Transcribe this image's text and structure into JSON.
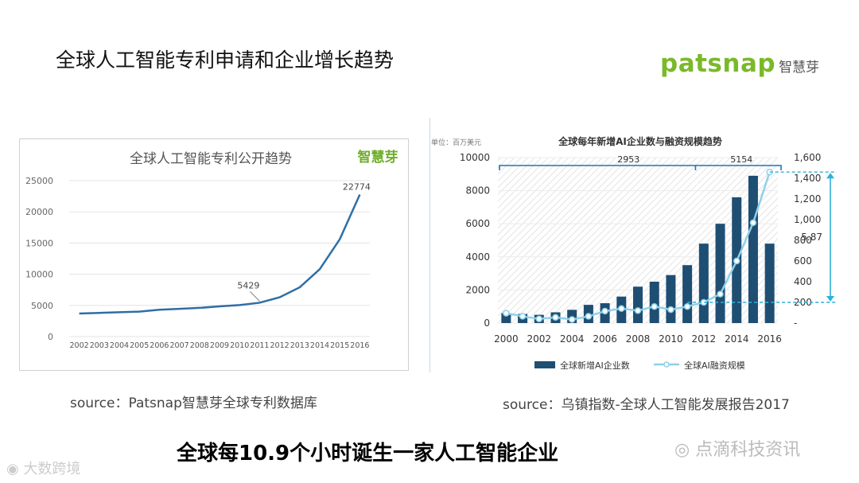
{
  "slide_title": "全球人工智能专利申请和企业增长趋势",
  "logo": {
    "brand": "patsnap",
    "brand_cn": "智慧芽"
  },
  "chart_data": [
    {
      "type": "line",
      "title": "全球人工智能专利公开趋势",
      "logo_text": "智慧芽",
      "x": [
        "2002",
        "2003",
        "2004",
        "2005",
        "2006",
        "2007",
        "2008",
        "2009",
        "2010",
        "2011",
        "2012",
        "2013",
        "2014",
        "2015",
        "2016"
      ],
      "values": [
        3700,
        3800,
        3900,
        4000,
        4300,
        4450,
        4600,
        4850,
        5050,
        5429,
        6300,
        7900,
        10800,
        15600,
        22774
      ],
      "annotations": [
        {
          "x": "2011",
          "label": "5429"
        },
        {
          "x": "2016",
          "label": "22774"
        }
      ],
      "ylim": [
        0,
        25000
      ],
      "yticks": [
        "0",
        "5000",
        "10000",
        "15000",
        "20000",
        "25000"
      ],
      "xlabel": "",
      "ylabel": "",
      "grid": true,
      "line_color": "#2e6ea6"
    },
    {
      "type": "bar",
      "title": "全球每年新增AI企业数与融资规模趋势",
      "unit_label": "单位：百万美元",
      "x": [
        "2000",
        "2001",
        "2002",
        "2003",
        "2004",
        "2005",
        "2006",
        "2007",
        "2008",
        "2009",
        "2010",
        "2011",
        "2012",
        "2013",
        "2014",
        "2015",
        "2016"
      ],
      "xticks": [
        "2000",
        "2002",
        "2004",
        "2006",
        "2008",
        "2010",
        "2012",
        "2014",
        "2016"
      ],
      "series": [
        {
          "name": "全球新增AI企业数",
          "type": "bar",
          "axis": "left",
          "values": [
            600,
            550,
            500,
            650,
            800,
            1100,
            1200,
            1600,
            2200,
            2500,
            2900,
            3500,
            4800,
            6000,
            7600,
            8900,
            4800
          ]
        },
        {
          "name": "全球AI融资规模",
          "type": "line",
          "axis": "right",
          "values": [
            95,
            65,
            40,
            55,
            35,
            65,
            115,
            140,
            120,
            160,
            130,
            160,
            200,
            280,
            600,
            970,
            1460
          ]
        }
      ],
      "ylim_left": [
        0,
        10000
      ],
      "yticks_left": [
        "0",
        "2000",
        "4000",
        "6000",
        "8000",
        "10000"
      ],
      "ylim_right": [
        0,
        1600
      ],
      "yticks_right": [
        "-",
        "200",
        "400",
        "600",
        "800",
        "1,000",
        "1,200",
        "1,400",
        "1,600"
      ],
      "bracket_labels": [
        "2953",
        "5154"
      ],
      "range_annotation": "5.87",
      "legend_position": "bottom",
      "colors": {
        "bars": "#1f4e73",
        "line": "#8fd0ea",
        "bracket": "#1f75b8",
        "arrow": "#2fb0d8"
      }
    }
  ],
  "source_left": "source：Patsnap智慧芽全球专利数据库",
  "source_right": "source：乌镇指数-全球人工智能发展报告2017",
  "headline": "全球每10.9个小时诞生一家人工智能企业",
  "watermark_right": "点滴科技资讯",
  "watermark_left": "大数跨境"
}
